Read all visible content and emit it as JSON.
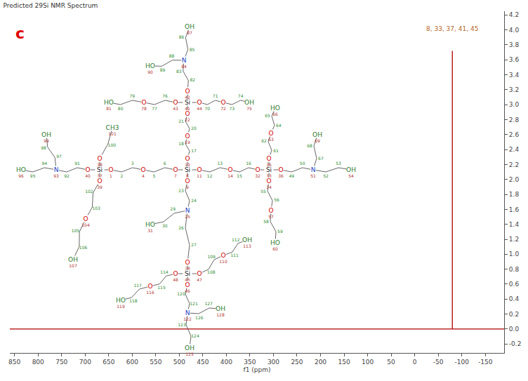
{
  "chart_data": {
    "type": "line",
    "title": "Predicted 29Si NMR Spectrum",
    "panel": "c",
    "xlabel": "f1 (ppm)",
    "x": [
      860,
      -80,
      -80,
      -80,
      -190
    ],
    "values": [
      0,
      0,
      3.72,
      0,
      0
    ],
    "color": "#b00000",
    "annotations": [
      {
        "text": "8, 33, 37, 41, 45",
        "x": -80,
        "y": 3.72,
        "color": "#b5651d"
      }
    ],
    "xlim": [
      860,
      -190
    ],
    "xticks": [
      850,
      800,
      750,
      700,
      650,
      600,
      550,
      500,
      450,
      400,
      350,
      300,
      250,
      200,
      150,
      100,
      50,
      0,
      -50,
      -100,
      -150
    ],
    "ylim": [
      -0.32,
      4.25
    ],
    "yticks": [
      -0.2,
      {
        "value": 0,
        "label": "0.0"
      },
      0.2,
      0.4,
      0.6,
      0.8,
      {
        "value": 1,
        "label": "1.0"
      },
      1.2,
      1.4,
      1.6,
      1.8,
      {
        "value": 2,
        "label": "2.0"
      },
      2.2,
      2.4,
      2.6,
      2.8,
      {
        "value": 3,
        "label": "3.0"
      },
      3.2,
      3.4,
      3.6,
      3.8,
      {
        "value": 4,
        "label": "4.0"
      },
      4.2
    ],
    "grid": false
  },
  "structure": {
    "heteroatoms": {
      "1": "O",
      "4": "O",
      "7": "O",
      "9": "O",
      "10": "O",
      "11": "O",
      "14": "O",
      "19": "O",
      "22": "O",
      "28": "O",
      "32": "O",
      "34": "O",
      "35": "O",
      "36": "O",
      "38": "O",
      "39": "O",
      "40": "O",
      "42": "O",
      "43": "O",
      "44": "O",
      "46": "O",
      "47": "O",
      "48": "O",
      "57": "O",
      "63": "O",
      "72": "O",
      "78": "O",
      "104": "O",
      "110": "O",
      "116": "O",
      "8": "Si",
      "33": "Si",
      "37": "Si",
      "41": "Si",
      "45": "Si",
      "25": "N",
      "51": "N",
      "84": "N",
      "93": "N",
      "122": "N",
      "31": "HO",
      "54": "OH",
      "60": "HO",
      "66": "HO",
      "69": "OH",
      "75": "OH",
      "81": "HO",
      "87": "OH",
      "90": "HO",
      "96": "HO",
      "99": "OH",
      "107": "OH",
      "113": "OH",
      "119": "HO",
      "125": "OH",
      "128": "OH",
      "101": "CH3"
    },
    "chains": [
      [
        8,
        7,
        6,
        5,
        4,
        3,
        2,
        1,
        37
      ],
      [
        8,
        11,
        12,
        13,
        14,
        15,
        16,
        32,
        33
      ],
      [
        8,
        10,
        17,
        18,
        19,
        20,
        21,
        22,
        41
      ],
      [
        8,
        9,
        23,
        24,
        25,
        26,
        27,
        28,
        45
      ],
      [
        37,
        40,
        91,
        92,
        93,
        94,
        95,
        96
      ],
      [
        93,
        97,
        98,
        99
      ],
      [
        37,
        38,
        100,
        101
      ],
      [
        37,
        39,
        102,
        103,
        104,
        105,
        106,
        107
      ],
      [
        41,
        42,
        82,
        83,
        84,
        85,
        86,
        87
      ],
      [
        84,
        88,
        89,
        90
      ],
      [
        41,
        43,
        76,
        77,
        78,
        79,
        80,
        81
      ],
      [
        41,
        44,
        70,
        71,
        72,
        73,
        74,
        75
      ],
      [
        33,
        36,
        49,
        50,
        51,
        52,
        53,
        54
      ],
      [
        51,
        67,
        68,
        69
      ],
      [
        33,
        35,
        61,
        62,
        63,
        64,
        65,
        66
      ],
      [
        33,
        34,
        55,
        56,
        57,
        58,
        59,
        60
      ],
      [
        25,
        29,
        30,
        31
      ],
      [
        45,
        47,
        108,
        109,
        110,
        111,
        112,
        113
      ],
      [
        45,
        48,
        114,
        115,
        116,
        117,
        118,
        119
      ],
      [
        45,
        46,
        120,
        121,
        122,
        123,
        124,
        125
      ],
      [
        122,
        126,
        127,
        128
      ]
    ]
  }
}
